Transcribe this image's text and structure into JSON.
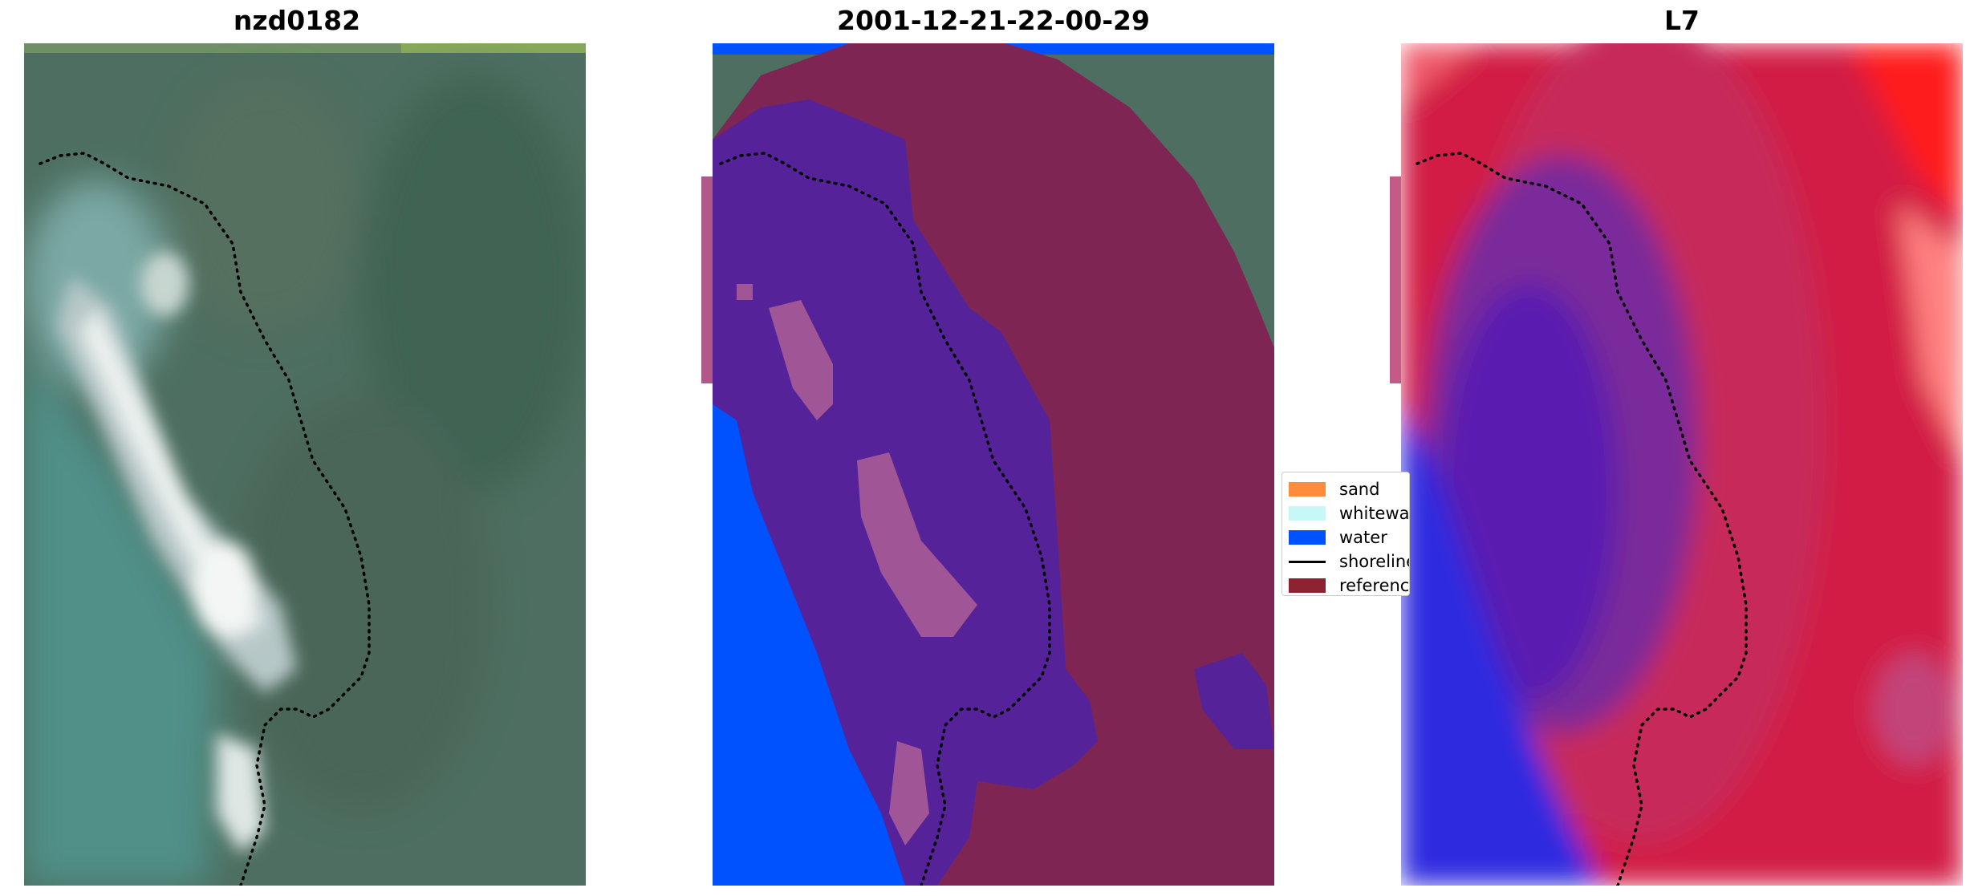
{
  "panels": {
    "left_title": "nzd0182",
    "middle_title": "2001-12-21-22-00-29",
    "right_title": "L7"
  },
  "legend": {
    "items": [
      {
        "label": "sand",
        "color": "#ff8c3a"
      },
      {
        "label": "whitewater",
        "color": "#c8f7f7"
      },
      {
        "label": "water",
        "color": "#0052ff"
      },
      {
        "label": "shoreline",
        "color": "#000000"
      },
      {
        "label": "reference",
        "color": "#8b2332"
      }
    ]
  },
  "colors": {
    "sand": "#ff8c3a",
    "whitewater": "#c8f7f7",
    "water": "#0052ff",
    "shoreline": "#000000",
    "reference": "#8b2332",
    "rgb_vegetation": "#4a6b5e",
    "rgb_water": "#4f8f8a",
    "classified_land": "#7e2553",
    "classified_purple": "#56229a",
    "mndwi_red": "#d21a45",
    "mndwi_blue": "#2f2be0"
  }
}
